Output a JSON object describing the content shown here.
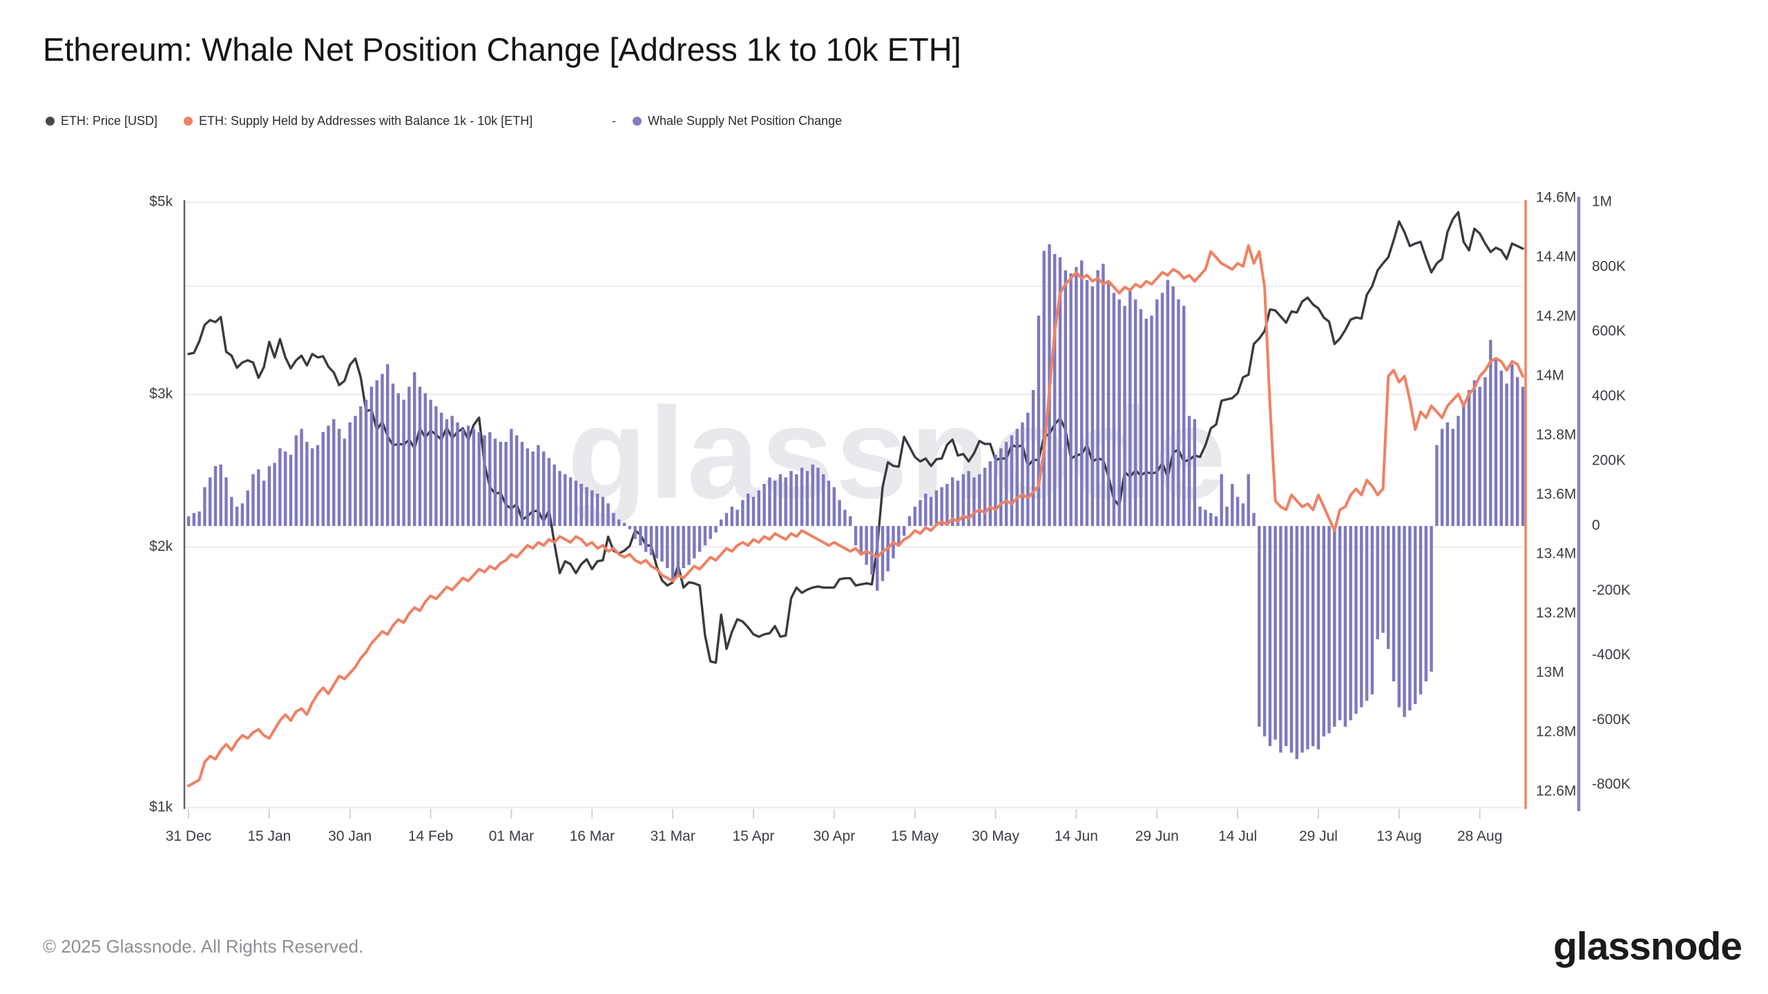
{
  "header": {
    "title": "Ethereum: Whale Net Position Change [Address 1k to 10k ETH]"
  },
  "legend": {
    "separator": "-",
    "items": [
      {
        "label": "ETH: Price [USD]",
        "color": "#47474d"
      },
      {
        "label": "ETH: Supply Held by Addresses with Balance 1k - 10k [ETH]",
        "color": "#ee8265"
      },
      {
        "label": "Whale Supply Net Position Change",
        "color": "#837cc4"
      }
    ]
  },
  "watermark": "glassnode",
  "footer": {
    "copyright": "© 2025 Glassnode. All Rights Reserved.",
    "logo": "glassnode"
  },
  "chart_data": {
    "type": "mixed",
    "title": "Ethereum: Whale Net Position Change [Address 1k to 10k ETH]",
    "grid": "horizontal only, price levels 5k/4k/3k/2k/1k",
    "legend_position": "top",
    "x_tick_labels": [
      "31 Dec",
      "15 Jan",
      "30 Jan",
      "14 Feb",
      "01 Mar",
      "16 Mar",
      "31 Mar",
      "15 Apr",
      "30 Apr",
      "15 May",
      "30 May",
      "14 Jun",
      "29 Jun",
      "14 Jul",
      "29 Jul",
      "13 Aug",
      "28 Aug"
    ],
    "x_tick_day_indices": [
      0,
      15,
      30,
      45,
      60,
      75,
      90,
      105,
      120,
      135,
      150,
      165,
      180,
      195,
      210,
      225,
      240
    ],
    "days_total": 249,
    "axes": {
      "price_usd": {
        "side": "left",
        "scale": "log",
        "tick_labels": [
          "$5k",
          "$3k",
          "$2k",
          "$1k"
        ],
        "tick_values": [
          5000,
          3000,
          2000,
          1000
        ],
        "gridline_values": [
          5000,
          4000,
          3000,
          2000,
          1000
        ],
        "range": [
          1000,
          5000
        ]
      },
      "supply_m": {
        "side": "right-inner",
        "scale": "linear",
        "color": "#ee8265",
        "tick_labels": [
          "14.6M",
          "14.4M",
          "14.2M",
          "14M",
          "13.8M",
          "13.6M",
          "13.4M",
          "13.2M",
          "13M",
          "12.8M",
          "12.6M"
        ],
        "tick_values": [
          14.6,
          14.4,
          14.2,
          14.0,
          13.8,
          13.6,
          13.4,
          13.2,
          13.0,
          12.8,
          12.6
        ],
        "range": [
          12.6,
          14.6
        ]
      },
      "net_k": {
        "side": "right-outer",
        "scale": "linear",
        "color": "#8780c5",
        "tick_labels": [
          "1M",
          "800K",
          "600K",
          "400K",
          "200K",
          "0",
          "-200K",
          "-400K",
          "-600K",
          "-800K"
        ],
        "tick_values": [
          1000,
          800,
          600,
          400,
          200,
          0,
          -200,
          -400,
          -600,
          -800
        ],
        "range": [
          -950,
          1000
        ]
      }
    },
    "series": [
      {
        "name": "ETH: Price [USD]",
        "type": "line",
        "axis": "price_usd",
        "color": "#3a3a40",
        "values": [
          3340,
          3350,
          3455,
          3610,
          3655,
          3635,
          3685,
          3360,
          3325,
          3220,
          3265,
          3285,
          3265,
          3135,
          3225,
          3450,
          3310,
          3475,
          3310,
          3215,
          3285,
          3325,
          3240,
          3340,
          3310,
          3320,
          3230,
          3180,
          3075,
          3110,
          3245,
          3300,
          3140,
          2870,
          2880,
          2730,
          2790,
          2685,
          2620,
          2630,
          2625,
          2660,
          2600,
          2740,
          2675,
          2725,
          2695,
          2660,
          2745,
          2670,
          2715,
          2740,
          2660,
          2765,
          2820,
          2495,
          2345,
          2305,
          2310,
          2235,
          2215,
          2240,
          2150,
          2170,
          2200,
          2200,
          2140,
          2205,
          2020,
          1865,
          1925,
          1910,
          1865,
          1910,
          1935,
          1885,
          1925,
          1930,
          2055,
          1980,
          1965,
          1980,
          2005,
          2090,
          2065,
          2010,
          2005,
          1900,
          1830,
          1805,
          1820,
          1905,
          1795,
          1820,
          1815,
          1805,
          1580,
          1475,
          1470,
          1670,
          1525,
          1595,
          1650,
          1640,
          1615,
          1585,
          1575,
          1585,
          1590,
          1620,
          1575,
          1580,
          1745,
          1795,
          1770,
          1785,
          1795,
          1800,
          1795,
          1795,
          1795,
          1835,
          1840,
          1840,
          1805,
          1810,
          1815,
          1810,
          2000,
          2345,
          2505,
          2480,
          2475,
          2680,
          2610,
          2540,
          2510,
          2530,
          2480,
          2525,
          2530,
          2625,
          2660,
          2550,
          2560,
          2510,
          2565,
          2650,
          2630,
          2630,
          2520,
          2530,
          2530,
          2620,
          2610,
          2620,
          2480,
          2520,
          2520,
          2680,
          2700,
          2770,
          2815,
          2730,
          2530,
          2550,
          2560,
          2620,
          2510,
          2530,
          2520,
          2410,
          2270,
          2230,
          2440,
          2410,
          2450,
          2420,
          2440,
          2430,
          2440,
          2500,
          2410,
          2570,
          2590,
          2510,
          2520,
          2550,
          2540,
          2620,
          2740,
          2770,
          2950,
          2960,
          2970,
          3010,
          3140,
          3160,
          3430,
          3480,
          3550,
          3760,
          3750,
          3690,
          3630,
          3740,
          3730,
          3840,
          3880,
          3810,
          3770,
          3680,
          3640,
          3430,
          3480,
          3560,
          3660,
          3680,
          3670,
          3910,
          4000,
          4170,
          4250,
          4320,
          4520,
          4750,
          4620,
          4450,
          4480,
          4500,
          4310,
          4150,
          4250,
          4300,
          4620,
          4780,
          4870,
          4500,
          4400,
          4660,
          4600,
          4480,
          4380,
          4430,
          4400,
          4300,
          4480,
          4450,
          4420
        ]
      },
      {
        "name": "ETH: Supply Held by Addresses with Balance 1k - 10k [ETH]",
        "type": "line",
        "axis": "supply_m",
        "color": "#ee8265",
        "values": [
          12.62,
          12.63,
          12.64,
          12.7,
          12.72,
          12.71,
          12.74,
          12.76,
          12.74,
          12.77,
          12.79,
          12.78,
          12.8,
          12.81,
          12.79,
          12.78,
          12.81,
          12.84,
          12.86,
          12.84,
          12.87,
          12.88,
          12.86,
          12.9,
          12.93,
          12.95,
          12.93,
          12.96,
          12.99,
          12.98,
          13.0,
          13.02,
          13.05,
          13.07,
          13.1,
          13.12,
          13.14,
          13.13,
          13.16,
          13.18,
          13.17,
          13.2,
          13.22,
          13.21,
          13.24,
          13.26,
          13.25,
          13.27,
          13.29,
          13.28,
          13.3,
          13.32,
          13.31,
          13.33,
          13.35,
          13.34,
          13.36,
          13.35,
          13.37,
          13.38,
          13.4,
          13.39,
          13.41,
          13.43,
          13.42,
          13.44,
          13.43,
          13.45,
          13.44,
          13.46,
          13.45,
          13.44,
          13.46,
          13.45,
          13.43,
          13.44,
          13.42,
          13.43,
          13.41,
          13.42,
          13.4,
          13.39,
          13.4,
          13.38,
          13.37,
          13.38,
          13.36,
          13.35,
          13.33,
          13.32,
          13.31,
          13.33,
          13.32,
          13.34,
          13.36,
          13.35,
          13.37,
          13.39,
          13.38,
          13.4,
          13.42,
          13.41,
          13.43,
          13.44,
          13.43,
          13.45,
          13.44,
          13.46,
          13.45,
          13.47,
          13.46,
          13.45,
          13.47,
          13.46,
          13.48,
          13.47,
          13.46,
          13.45,
          13.44,
          13.43,
          13.44,
          13.43,
          13.42,
          13.41,
          13.42,
          13.4,
          13.41,
          13.4,
          13.39,
          13.41,
          13.42,
          13.44,
          13.43,
          13.45,
          13.46,
          13.48,
          13.47,
          13.49,
          13.48,
          13.5,
          13.51,
          13.5,
          13.52,
          13.51,
          13.53,
          13.52,
          13.54,
          13.55,
          13.54,
          13.56,
          13.55,
          13.57,
          13.58,
          13.57,
          13.59,
          13.6,
          13.59,
          13.61,
          13.63,
          13.75,
          13.95,
          14.15,
          14.28,
          14.31,
          14.33,
          14.35,
          14.33,
          14.34,
          14.32,
          14.33,
          14.31,
          14.32,
          14.3,
          14.28,
          14.3,
          14.29,
          14.31,
          14.3,
          14.32,
          14.31,
          14.33,
          14.35,
          14.34,
          14.36,
          14.35,
          14.33,
          14.34,
          14.32,
          14.34,
          14.36,
          14.42,
          14.4,
          14.38,
          14.37,
          14.36,
          14.38,
          14.37,
          14.44,
          14.38,
          14.42,
          14.3,
          13.9,
          13.58,
          13.56,
          13.55,
          13.6,
          13.58,
          13.56,
          13.57,
          13.55,
          13.6,
          13.56,
          13.52,
          13.48,
          13.55,
          13.56,
          13.6,
          13.62,
          13.6,
          13.65,
          13.63,
          13.6,
          13.62,
          14.0,
          14.02,
          13.98,
          14.0,
          13.92,
          13.82,
          13.88,
          13.86,
          13.9,
          13.88,
          13.86,
          13.9,
          13.92,
          13.94,
          13.9,
          13.94,
          13.96,
          14.0,
          14.02,
          14.05,
          14.06,
          14.05,
          14.02,
          14.05,
          14.04,
          14.0
        ]
      },
      {
        "name": "Whale Supply Net Position Change",
        "type": "bar",
        "axis": "net_k",
        "color": "#7e78be",
        "values": [
          30,
          40,
          45,
          120,
          150,
          185,
          190,
          150,
          90,
          60,
          70,
          110,
          160,
          175,
          140,
          185,
          195,
          240,
          230,
          220,
          280,
          300,
          260,
          240,
          250,
          290,
          310,
          330,
          300,
          270,
          320,
          340,
          370,
          390,
          430,
          450,
          470,
          500,
          440,
          410,
          390,
          430,
          475,
          430,
          410,
          390,
          370,
          350,
          330,
          340,
          320,
          300,
          310,
          300,
          290,
          280,
          290,
          270,
          260,
          260,
          300,
          280,
          260,
          240,
          230,
          250,
          230,
          210,
          190,
          170,
          160,
          150,
          140,
          130,
          120,
          110,
          100,
          90,
          70,
          40,
          20,
          10,
          -10,
          -40,
          -60,
          -80,
          -90,
          -100,
          -110,
          -130,
          -170,
          -150,
          -130,
          -120,
          -100,
          -80,
          -60,
          -40,
          -20,
          20,
          40,
          60,
          50,
          80,
          100,
          90,
          110,
          130,
          150,
          140,
          160,
          150,
          170,
          160,
          180,
          170,
          190,
          180,
          160,
          140,
          120,
          80,
          50,
          30,
          -60,
          -90,
          -120,
          -150,
          -200,
          -170,
          -140,
          -100,
          -60,
          -30,
          30,
          60,
          80,
          100,
          90,
          110,
          120,
          130,
          150,
          140,
          160,
          170,
          150,
          160,
          180,
          200,
          220,
          240,
          260,
          280,
          300,
          320,
          350,
          420,
          650,
          850,
          870,
          840,
          830,
          790,
          780,
          800,
          820,
          760,
          740,
          790,
          810,
          750,
          720,
          700,
          680,
          730,
          700,
          670,
          640,
          650,
          700,
          720,
          760,
          740,
          700,
          680,
          340,
          330,
          60,
          50,
          40,
          30,
          160,
          60,
          130,
          90,
          70,
          160,
          40,
          -620,
          -650,
          -680,
          -660,
          -700,
          -680,
          -700,
          -720,
          -700,
          -690,
          -680,
          -690,
          -650,
          -640,
          -620,
          -600,
          -620,
          -600,
          -580,
          -560,
          -540,
          -520,
          -350,
          -330,
          -380,
          -480,
          -560,
          -590,
          -570,
          -550,
          -520,
          -480,
          -450,
          250,
          300,
          320,
          300,
          340,
          380,
          420,
          450,
          430,
          460,
          575,
          520,
          480,
          440,
          500,
          460,
          430
        ]
      }
    ]
  }
}
